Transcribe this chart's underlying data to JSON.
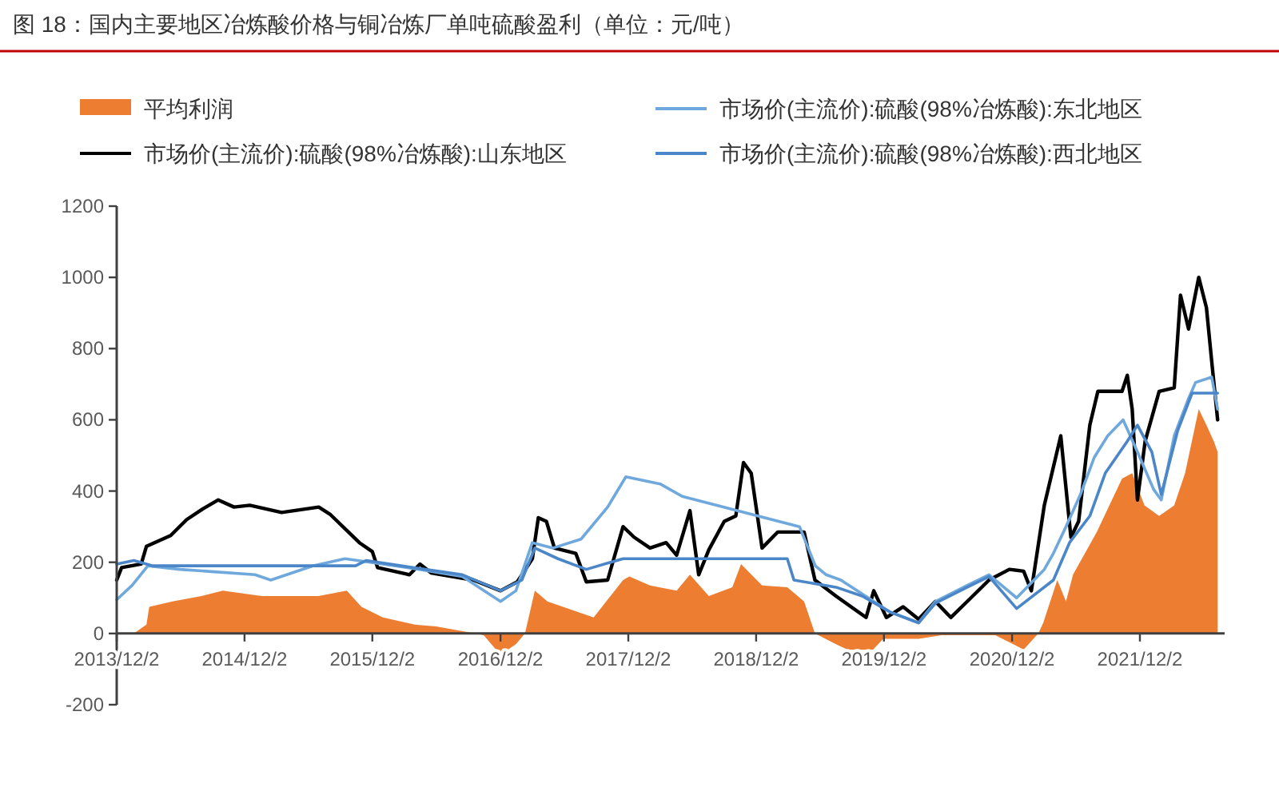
{
  "chart_data": {
    "type": "line",
    "title": "图 18：国内主要地区冶炼酸价格与铜冶炼厂单吨硫酸盈利（单位：元/吨）",
    "legend": "top",
    "xlim": [
      "2013-12-02",
      "2022-08-01"
    ],
    "xticks": [
      {
        "value": "2013-12-02",
        "label": "2013/12/2"
      },
      {
        "value": "2014-12-02",
        "label": "2014/12/2"
      },
      {
        "value": "2015-12-02",
        "label": "2015/12/2"
      },
      {
        "value": "2016-12-02",
        "label": "2016/12/2"
      },
      {
        "value": "2017-12-02",
        "label": "2017/12/2"
      },
      {
        "value": "2018-12-02",
        "label": "2018/12/2"
      },
      {
        "value": "2019-12-02",
        "label": "2019/12/2"
      },
      {
        "value": "2020-12-02",
        "label": "2020/12/2"
      },
      {
        "value": "2021-12-02",
        "label": "2021/12/2"
      }
    ],
    "ylim": [
      -200,
      1200
    ],
    "yticks": [
      -200,
      0,
      200,
      400,
      600,
      800,
      1000,
      1200
    ],
    "series": [
      {
        "name": "平均利润",
        "type": "area",
        "color": "#ed7d31",
        "x": [
          "2014-01-20",
          "2014-02-25",
          "2014-03-05",
          "2014-05-10",
          "2014-08-01",
          "2014-10-01",
          "2015-01-20",
          "2015-07-01",
          "2015-09-20",
          "2015-11-01",
          "2016-01-01",
          "2016-04-01",
          "2016-06-01",
          "2016-09-20",
          "2016-10-15",
          "2016-12-02",
          "2017-01-15",
          "2017-02-10",
          "2017-03-10",
          "2017-04-15",
          "2017-08-25",
          "2017-11-17",
          "2017-12-05",
          "2018-02-02",
          "2018-04-19",
          "2018-05-27",
          "2018-07-20",
          "2018-09-25",
          "2018-10-20",
          "2018-12-19",
          "2019-03-01",
          "2019-04-18",
          "2019-05-19",
          "2019-07-18",
          "2019-08-20",
          "2019-11-01",
          "2019-11-30",
          "2020-03-10",
          "2020-05-15",
          "2020-10-15",
          "2021-01-04",
          "2021-02-15",
          "2021-03-01",
          "2021-04-10",
          "2021-05-05",
          "2021-05-25",
          "2021-08-01",
          "2021-10-12",
          "2021-11-10",
          "2021-12-15",
          "2022-01-26",
          "2022-03-10",
          "2022-04-10",
          "2022-05-19",
          "2022-06-10",
          "2022-07-01",
          "2022-07-12"
        ],
        "values": [
          0,
          25,
          75,
          90,
          105,
          120,
          105,
          105,
          120,
          75,
          45,
          25,
          20,
          0,
          -5,
          -60,
          -30,
          0,
          120,
          90,
          45,
          150,
          160,
          135,
          120,
          165,
          105,
          130,
          195,
          135,
          130,
          90,
          0,
          -30,
          -45,
          -45,
          -15,
          -15,
          -5,
          -5,
          -45,
          0,
          30,
          150,
          90,
          165,
          285,
          435,
          450,
          360,
          330,
          360,
          450,
          630,
          585,
          540,
          510
        ]
      },
      {
        "name": "市场价(主流价):硫酸(98%冶炼酸):山东地区",
        "type": "line",
        "color": "#000000",
        "x": [
          "2013-12-02",
          "2013-12-16",
          "2014-02-10",
          "2014-02-25",
          "2014-05-05",
          "2014-06-20",
          "2014-08-05",
          "2014-09-18",
          "2014-11-02",
          "2014-12-17",
          "2015-03-18",
          "2015-07-02",
          "2015-08-03",
          "2015-10-26",
          "2015-12-02",
          "2015-12-17",
          "2016-03-17",
          "2016-04-16",
          "2016-05-18",
          "2016-09-16",
          "2016-12-02",
          "2017-01-19",
          "2017-03-03",
          "2017-03-20",
          "2017-04-12",
          "2017-05-05",
          "2017-07-05",
          "2017-08-04",
          "2017-10-04",
          "2017-11-17",
          "2017-12-19",
          "2018-02-02",
          "2018-03-20",
          "2018-04-19",
          "2018-05-27",
          "2018-06-21",
          "2018-07-20",
          "2018-09-02",
          "2018-10-05",
          "2018-10-27",
          "2018-11-18",
          "2018-12-19",
          "2019-02-02",
          "2019-04-18",
          "2019-05-19",
          "2019-07-18",
          "2019-10-12",
          "2019-11-03",
          "2019-12-09",
          "2020-01-26",
          "2020-03-10",
          "2020-04-27",
          "2020-06-10",
          "2020-07-27",
          "2020-09-27",
          "2020-11-24",
          "2021-01-04",
          "2021-01-26",
          "2021-03-04",
          "2021-04-20",
          "2021-05-19",
          "2021-06-10",
          "2021-07-12",
          "2021-08-04",
          "2021-10-12",
          "2021-10-27",
          "2021-11-10",
          "2021-11-25",
          "2021-12-17",
          "2022-01-26",
          "2022-03-10",
          "2022-03-28",
          "2022-04-20",
          "2022-05-19",
          "2022-06-10",
          "2022-06-25",
          "2022-07-12"
        ],
        "values": [
          150,
          185,
          195,
          245,
          275,
          320,
          350,
          375,
          355,
          360,
          340,
          355,
          335,
          255,
          230,
          185,
          165,
          195,
          170,
          150,
          120,
          145,
          210,
          325,
          315,
          240,
          225,
          145,
          150,
          300,
          270,
          240,
          255,
          220,
          345,
          165,
          235,
          315,
          330,
          480,
          450,
          240,
          285,
          285,
          150,
          105,
          45,
          120,
          45,
          75,
          40,
          90,
          45,
          90,
          150,
          180,
          175,
          120,
          360,
          555,
          270,
          315,
          585,
          680,
          680,
          725,
          630,
          375,
          540,
          680,
          690,
          950,
          855,
          1000,
          915,
          765,
          600
        ]
      },
      {
        "name": "市场价(主流价):硫酸(98%冶炼酸):东北地区",
        "type": "line",
        "color": "#6fa8dc",
        "x": [
          "2013-12-02",
          "2014-01-15",
          "2014-03-01",
          "2014-06-01",
          "2015-01-01",
          "2015-02-15",
          "2015-06-15",
          "2015-09-15",
          "2016-04-15",
          "2016-08-15",
          "2016-12-02",
          "2017-01-15",
          "2017-03-03",
          "2017-05-01",
          "2017-07-20",
          "2017-10-04",
          "2017-11-25",
          "2018-03-03",
          "2018-05-05",
          "2019-04-05",
          "2019-05-20",
          "2019-06-20",
          "2019-08-01",
          "2019-12-20",
          "2020-03-10",
          "2020-04-27",
          "2020-07-27",
          "2020-09-27",
          "2020-12-15",
          "2021-03-04",
          "2021-03-30",
          "2021-05-05",
          "2021-06-15",
          "2021-07-25",
          "2021-09-01",
          "2021-10-15",
          "2021-11-25",
          "2022-01-10",
          "2022-02-01",
          "2022-03-10",
          "2022-04-20",
          "2022-05-10",
          "2022-06-25",
          "2022-07-12"
        ],
        "values": [
          95,
          135,
          190,
          180,
          165,
          150,
          190,
          210,
          180,
          160,
          90,
          120,
          255,
          240,
          265,
          355,
          440,
          420,
          385,
          300,
          190,
          165,
          150,
          60,
          30,
          90,
          135,
          165,
          100,
          180,
          225,
          300,
          390,
          495,
          555,
          600,
          510,
          405,
          375,
          555,
          660,
          705,
          720,
          630
        ]
      },
      {
        "name": "市场价(主流价):硫酸(98%冶炼酸):西北地区",
        "type": "line",
        "color": "#4a86c8",
        "x": [
          "2013-12-02",
          "2014-01-20",
          "2014-03-15",
          "2015-10-15",
          "2015-11-15",
          "2016-05-01",
          "2016-08-15",
          "2016-12-02",
          "2017-02-01",
          "2017-03-10",
          "2017-05-15",
          "2017-08-04",
          "2017-11-17",
          "2019-03-01",
          "2019-03-20",
          "2019-07-18",
          "2019-10-01",
          "2019-12-20",
          "2020-03-10",
          "2020-04-27",
          "2020-07-27",
          "2020-09-27",
          "2020-12-15",
          "2021-03-30",
          "2021-05-15",
          "2021-07-12",
          "2021-08-25",
          "2021-10-27",
          "2021-11-25",
          "2022-01-05",
          "2022-02-01",
          "2022-03-20",
          "2022-04-30",
          "2022-07-12"
        ],
        "values": [
          195,
          205,
          190,
          190,
          205,
          180,
          165,
          120,
          150,
          240,
          210,
          180,
          210,
          210,
          150,
          130,
          105,
          60,
          30,
          85,
          130,
          160,
          70,
          150,
          255,
          330,
          450,
          540,
          585,
          510,
          390,
          570,
          675,
          675
        ]
      }
    ]
  }
}
